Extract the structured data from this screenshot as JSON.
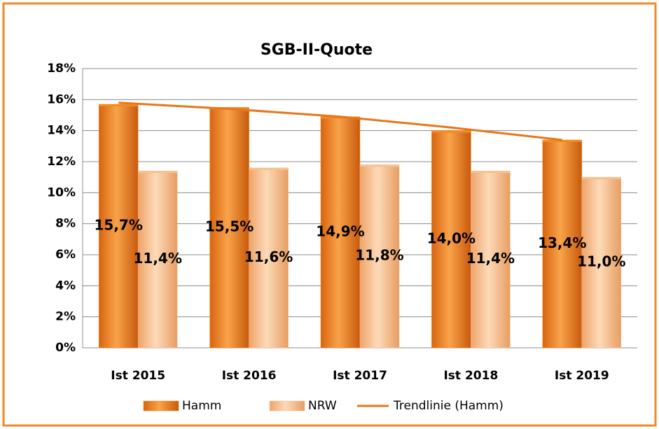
{
  "chart_data": {
    "type": "bar",
    "title": "SGB-II-Quote",
    "categories": [
      "Ist 2015",
      "Ist 2016",
      "Ist 2017",
      "Ist 2018",
      "Ist 2019"
    ],
    "series": [
      {
        "name": "Hamm",
        "color": "#f28a1e",
        "values": [
          15.7,
          15.5,
          14.9,
          14.0,
          13.4
        ],
        "value_labels": [
          "15,7%",
          "15,5%",
          "14,9%",
          "14,0%",
          "13,4%"
        ]
      },
      {
        "name": "NRW",
        "color": "#f9c08f",
        "values": [
          11.4,
          11.6,
          11.8,
          11.4,
          11.0
        ],
        "value_labels": [
          "11,4%",
          "11,6%",
          "11,8%",
          "11,4%",
          "11,0%"
        ]
      },
      {
        "name": "Trendlinie (Hamm)",
        "type": "line",
        "color": "#e8761a",
        "values": [
          15.8,
          15.4,
          14.9,
          14.2,
          13.4
        ]
      }
    ],
    "ylim": [
      0,
      18
    ],
    "yticks": [
      {
        "value": 0,
        "label": "0%"
      },
      {
        "value": 2,
        "label": "2%"
      },
      {
        "value": 4,
        "label": "4%"
      },
      {
        "value": 6,
        "label": "6%"
      },
      {
        "value": 8,
        "label": "8%"
      },
      {
        "value": 10,
        "label": "10%"
      },
      {
        "value": 12,
        "label": "12%"
      },
      {
        "value": 14,
        "label": "14%"
      },
      {
        "value": 16,
        "label": "16%"
      },
      {
        "value": 18,
        "label": "18%"
      }
    ],
    "grid": true,
    "legend": "bottom"
  }
}
